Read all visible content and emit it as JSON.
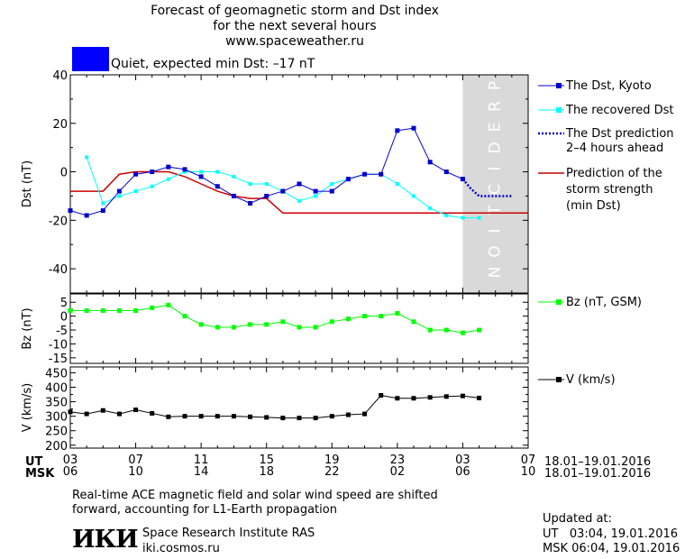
{
  "header": {
    "title_line1": "Forecast of geomagnetic storm and Dst index",
    "title_line2": "for the next several hours",
    "site": "www.spaceweather.ru",
    "status_text": "Quiet, expected min Dst: –17 nT",
    "status_color": "#0000ff"
  },
  "colors": {
    "dst_kyoto": "#0000cc",
    "dst_recovered": "#00ffff",
    "dst_prediction": "#0000cc",
    "storm_strength": "#cc0000",
    "bz": "#00ff00",
    "v": "#000000",
    "prediction_zone": "#d9d9d9"
  },
  "prediction_label": "PREDICTION",
  "legend": {
    "dst_kyoto": "The Dst, Kyoto",
    "dst_recovered": "The recovered Dst",
    "dst_prediction_1": "The Dst prediction",
    "dst_prediction_2": "2–4 hours ahead",
    "storm_1": "Prediction of the",
    "storm_2": "storm strength",
    "storm_3": "(min Dst)",
    "bz": "Bz (nT, GSM)",
    "v": "V (km/s)"
  },
  "time_axis": {
    "ut_label": "UT",
    "msk_label": "MSK",
    "ut_ticks": [
      "03",
      "07",
      "11",
      "15",
      "19",
      "23",
      "03",
      "07"
    ],
    "msk_ticks": [
      "06",
      "10",
      "14",
      "18",
      "22",
      "02",
      "06",
      "10"
    ],
    "ut_range": "18.01–19.01.2016",
    "msk_range": "18.01–19.01.2016"
  },
  "footer": {
    "note_line1": "Real-time ACE magnetic field and solar wind speed are shifted",
    "note_line2": "forward, accounting for L1-Earth propagation",
    "logo_text": "ИКИ",
    "institute": "Space Research Institute RAS",
    "institute_site": "iki.cosmos.ru",
    "updated_label": "Updated at:",
    "updated_ut": "UT   03:04, 19.01.2016",
    "updated_msk": "MSK 06:04, 19.01.2016"
  },
  "chart_data": [
    {
      "type": "line",
      "ylabel": "Dst (nT)",
      "ylim": [
        -50,
        40
      ],
      "yticks": [
        40,
        20,
        0,
        -20,
        -40
      ],
      "xlim": [
        0,
        28
      ],
      "prediction_from": 24,
      "series": [
        {
          "name": "The Dst, Kyoto",
          "x": [
            0,
            1,
            2,
            3,
            4,
            5,
            6,
            7,
            8,
            9,
            10,
            11,
            12,
            13,
            14,
            15,
            16,
            17,
            18,
            19,
            20,
            21,
            22,
            23,
            24
          ],
          "values": [
            -16,
            -18,
            -16,
            -8,
            -1,
            0,
            2,
            1,
            -2,
            -6,
            -10,
            -13,
            -10,
            -8,
            -5,
            -8,
            -8,
            -3,
            -1,
            -1,
            17,
            18,
            4,
            0,
            -3
          ]
        },
        {
          "name": "The recovered Dst",
          "x": [
            1,
            2,
            3,
            4,
            5,
            6,
            7,
            8,
            9,
            10,
            11,
            12,
            13,
            14,
            15,
            16,
            17,
            18,
            19,
            20,
            21,
            22,
            23,
            24,
            25
          ],
          "values": [
            6,
            -13,
            -10,
            -8,
            -6,
            -3,
            0,
            0,
            0,
            -2,
            -5,
            -5,
            -8,
            -12,
            -10,
            -5,
            -3,
            -1,
            -1,
            -5,
            -10,
            -15,
            -18,
            -19,
            -19
          ]
        },
        {
          "name": "The Dst prediction 2–4 hours ahead",
          "x": [
            24,
            24.5,
            25,
            26,
            27
          ],
          "values": [
            -3,
            -7,
            -10,
            -10,
            -10
          ]
        },
        {
          "name": "Prediction of the storm strength (min Dst)",
          "x": [
            -1,
            0,
            1,
            2,
            3,
            4,
            5,
            6,
            7,
            8,
            9,
            10,
            11,
            12,
            13,
            14,
            15,
            16,
            17,
            18,
            19,
            20,
            21,
            22,
            23,
            24,
            25,
            26,
            27,
            28
          ],
          "values": [
            -8,
            -8,
            -8,
            -8,
            -1,
            0,
            0,
            0,
            -2,
            -5,
            -8,
            -10,
            -11,
            -11,
            -17,
            -17,
            -17,
            -17,
            -17,
            -17,
            -17,
            -17,
            -17,
            -17,
            -17,
            -17,
            -17,
            -17,
            -17,
            -17
          ]
        }
      ]
    },
    {
      "type": "line",
      "ylabel": "Bz (nT)",
      "ylim": [
        -17,
        8
      ],
      "yticks": [
        5,
        0,
        -5,
        -10,
        -15
      ],
      "xlim": [
        0,
        28
      ],
      "series": [
        {
          "name": "Bz (nT, GSM)",
          "x": [
            0,
            1,
            2,
            3,
            4,
            5,
            6,
            7,
            8,
            9,
            10,
            11,
            12,
            13,
            14,
            15,
            16,
            17,
            18,
            19,
            20,
            21,
            22,
            23,
            24,
            25
          ],
          "values": [
            2,
            2,
            2,
            2,
            2,
            3,
            4,
            0,
            -3,
            -4,
            -4,
            -3,
            -3,
            -2,
            -4,
            -4,
            -2,
            -1,
            0,
            0,
            1,
            -2,
            -5,
            -5,
            -6,
            -5
          ]
        }
      ]
    },
    {
      "type": "line",
      "ylabel": "V (km/s)",
      "ylim": [
        190,
        470
      ],
      "yticks": [
        450,
        400,
        350,
        300,
        250,
        200
      ],
      "xlim": [
        0,
        28
      ],
      "series": [
        {
          "name": "V (km/s)",
          "x": [
            0,
            1,
            2,
            3,
            4,
            5,
            6,
            7,
            8,
            9,
            10,
            11,
            12,
            13,
            14,
            15,
            16,
            17,
            18,
            19,
            20,
            21,
            22,
            23,
            24,
            25
          ],
          "values": [
            315,
            308,
            320,
            308,
            322,
            310,
            298,
            300,
            300,
            300,
            300,
            298,
            296,
            294,
            294,
            294,
            300,
            305,
            308,
            372,
            362,
            362,
            365,
            368,
            370,
            363
          ]
        }
      ]
    }
  ]
}
